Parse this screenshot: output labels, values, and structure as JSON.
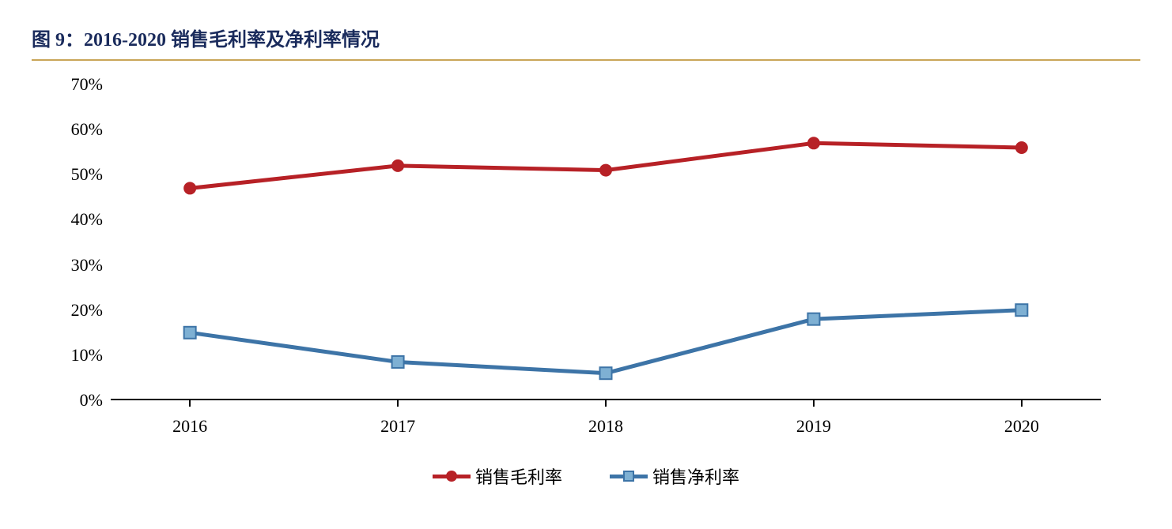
{
  "title": "图 9：2016-2020 销售毛利率及净利率情况",
  "chart": {
    "type": "line",
    "categories": [
      "2016",
      "2017",
      "2018",
      "2019",
      "2020"
    ],
    "series": [
      {
        "name": "销售毛利率",
        "values": [
          47,
          52,
          51,
          57,
          56
        ],
        "color": "#b72126",
        "marker": "circle",
        "marker_size": 16,
        "line_width": 5
      },
      {
        "name": "销售净利率",
        "values": [
          15,
          8.5,
          6,
          18,
          20
        ],
        "color": "#3d74a7",
        "marker": "square",
        "marker_size": 15,
        "marker_fill": "#7eb0d3",
        "marker_stroke": "#3d74a7",
        "line_width": 5
      }
    ],
    "y_axis": {
      "min": 0,
      "max": 70,
      "ticks": [
        0,
        10,
        20,
        30,
        40,
        50,
        60,
        70
      ],
      "tick_labels": [
        "0%",
        "10%",
        "20%",
        "30%",
        "40%",
        "50%",
        "60%",
        "70%"
      ],
      "label_fontsize": 22
    },
    "x_axis": {
      "label_fontsize": 22
    },
    "background_color": "#ffffff",
    "title_color": "#1a2b5c",
    "title_fontsize": 24,
    "underline_color": "#c9a558",
    "axis_color": "#000000"
  },
  "legend": {
    "items": [
      {
        "label": "销售毛利率"
      },
      {
        "label": "销售净利率"
      }
    ]
  }
}
